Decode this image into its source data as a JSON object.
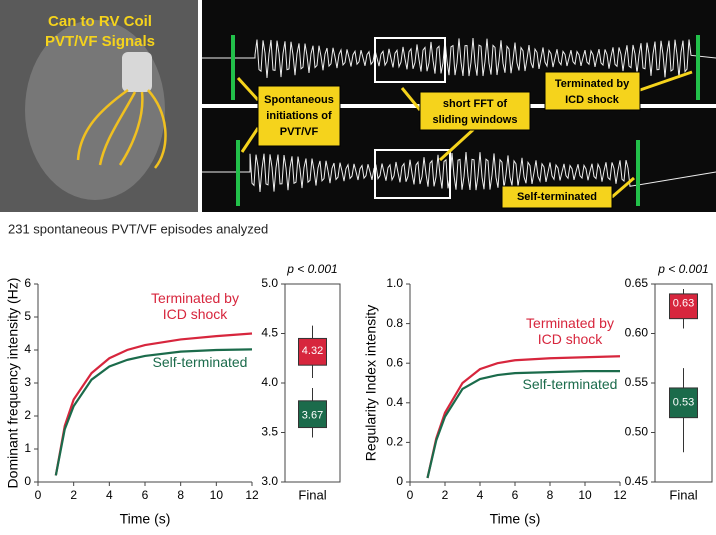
{
  "figure": {
    "image_label": [
      "Can to RV Coil",
      "PVT/VF Signals"
    ],
    "annotations": {
      "initiations": [
        "Spontaneous",
        "initiations of",
        "PVT/VF"
      ],
      "fft": [
        "short FFT of",
        "sliding windows"
      ],
      "terminated": [
        "Terminated by",
        "ICD shock"
      ],
      "self": [
        "Self-terminated"
      ]
    },
    "caption": "231 spontaneous PVT/VF episodes analyzed"
  },
  "chart_data": [
    {
      "type": "line",
      "x_label": "Time (s)",
      "y_label": "Dominant frequency intensity (Hz)",
      "x": [
        1,
        1.5,
        2,
        3,
        4,
        5,
        6,
        8,
        10,
        12
      ],
      "series": [
        {
          "name": "Terminated by ICD shock",
          "color": "#d7263d",
          "values": [
            0.2,
            1.7,
            2.5,
            3.3,
            3.75,
            4.0,
            4.15,
            4.32,
            4.42,
            4.5
          ]
        },
        {
          "name": "Self-terminated",
          "color": "#1b6b4b",
          "values": [
            0.2,
            1.6,
            2.3,
            3.1,
            3.5,
            3.7,
            3.82,
            3.95,
            4.0,
            4.02
          ]
        }
      ],
      "xlim": [
        0,
        12
      ],
      "xticks": [
        0,
        2,
        4,
        6,
        8,
        10,
        12
      ],
      "ylim": [
        0,
        6
      ],
      "yticks": [
        0,
        1,
        2,
        3,
        4,
        5,
        6
      ]
    },
    {
      "type": "box",
      "title": "p < 0.001",
      "x_label": "Final",
      "boxes": [
        {
          "color": "#d7263d",
          "min": 4.05,
          "q1": 4.18,
          "median": 4.32,
          "q3": 4.45,
          "max": 4.58
        },
        {
          "color": "#1b6b4b",
          "min": 3.45,
          "q1": 3.55,
          "median": 3.67,
          "q3": 3.82,
          "max": 3.95
        }
      ],
      "ylim": [
        3,
        5
      ],
      "yticks": [
        {
          "value": 3,
          "label": "3.0"
        },
        3.5,
        {
          "value": 4,
          "label": "4.0"
        },
        4.5,
        {
          "value": 5,
          "label": "5.0"
        }
      ]
    },
    {
      "type": "line",
      "x_label": "Time (s)",
      "y_label": "Regularity Index intensity",
      "x": [
        1,
        1.5,
        2,
        3,
        4,
        5,
        6,
        8,
        10,
        12
      ],
      "series": [
        {
          "name": "Terminated by ICD shock",
          "color": "#d7263d",
          "values": [
            0.02,
            0.22,
            0.35,
            0.5,
            0.57,
            0.6,
            0.615,
            0.625,
            0.63,
            0.635
          ]
        },
        {
          "name": "Self-terminated",
          "color": "#1b6b4b",
          "values": [
            0.02,
            0.21,
            0.33,
            0.47,
            0.52,
            0.54,
            0.55,
            0.555,
            0.56,
            0.56
          ]
        }
      ],
      "xlim": [
        0,
        12
      ],
      "xticks": [
        0,
        2,
        4,
        6,
        8,
        10,
        12
      ],
      "ylim": [
        0,
        1
      ],
      "yticks": [
        0,
        0.2,
        0.4,
        0.6,
        0.8,
        {
          "value": 1,
          "label": "1.0"
        }
      ]
    },
    {
      "type": "box",
      "title": "p < 0.001",
      "x_label": "Final",
      "boxes": [
        {
          "color": "#d7263d",
          "min": 0.605,
          "q1": 0.615,
          "median": 0.63,
          "q3": 0.64,
          "max": 0.645
        },
        {
          "color": "#1b6b4b",
          "min": 0.48,
          "q1": 0.515,
          "median": 0.53,
          "q3": 0.545,
          "max": 0.565
        }
      ],
      "ylim": [
        0.45,
        0.65
      ],
      "yticks": [
        0.45,
        {
          "value": 0.5,
          "label": "0.50"
        },
        0.55,
        {
          "value": 0.6,
          "label": "0.60"
        },
        0.65
      ]
    }
  ]
}
